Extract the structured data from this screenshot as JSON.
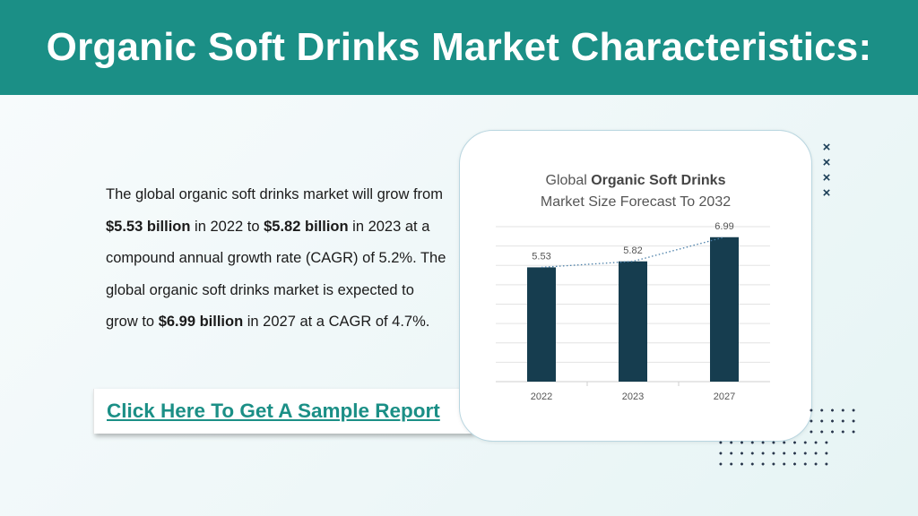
{
  "header": {
    "title": "Organic Soft Drinks Market Characteristics:"
  },
  "summary": {
    "t1": "The global organic soft drinks market will grow from ",
    "b1": "$5.53 billion",
    "t2": " in 2022 to ",
    "b2": "$5.82 billion",
    "t3": " in 2023 at a compound annual growth rate (CAGR) of 5.2%. The global organic soft drinks market is expected to grow to ",
    "b3": "$6.99 billion",
    "t4": " in 2027 at a CAGR of 4.7%."
  },
  "cta": {
    "label": "Click Here To Get A Sample Report"
  },
  "chart_title": {
    "prefix": "Global ",
    "bold": "Organic Soft Drinks",
    "line2": "Market Size Forecast To 2032"
  },
  "decor": {
    "x_mark": "×"
  },
  "colors": {
    "header": "#1b8f86",
    "bar": "#163d4f",
    "trend": "#4a7fa8",
    "link": "#1b8f86"
  },
  "chart_data": {
    "type": "bar",
    "title": "Global Organic Soft Drinks Market Size Forecast To 2032",
    "categories": [
      "2022",
      "2023",
      "2027"
    ],
    "values": [
      5.53,
      5.82,
      6.99
    ],
    "data_labels": [
      "5.53",
      "5.82",
      "6.99"
    ],
    "ylim": [
      0,
      7.5
    ],
    "grid": true,
    "trendline": "dotted",
    "legend": "none"
  }
}
